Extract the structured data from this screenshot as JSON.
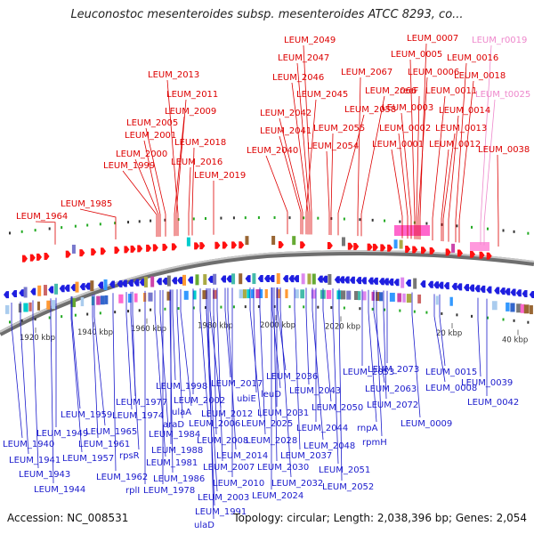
{
  "title": "Leuconostoc mesenteroides subsp. mesenteroides ATCC 8293, co...",
  "footer": {
    "accession": "Accession: NC_008531",
    "topology": "Topology: circular; Length: 2,038,396 bp; Genes: 2,054"
  },
  "scale_ticks": [
    "1920 kbp",
    "1940 kbp",
    "1960 kbp",
    "1980 kbp",
    "2000 kbp",
    "2020 kbp",
    "20 kbp",
    "40 kbp"
  ],
  "colors": {
    "forward_label": "#dd0000",
    "reverse_label": "#1a1acc",
    "rna_label": "#ee88cc",
    "backbone": "#8a8a8a",
    "dot_green": "#22aa22"
  },
  "forward_labels": [
    "LEUM_1964",
    "LEUM_1985",
    "LEUM_1999",
    "LEUM_2000",
    "LEUM_2001",
    "LEUM_2005",
    "LEUM_2009",
    "LEUM_2011",
    "LEUM_2013",
    "LEUM_2016",
    "LEUM_2018",
    "LEUM_2019",
    "LEUM_2040",
    "LEUM_2041",
    "LEUM_2042",
    "LEUM_2045",
    "LEUM_2046",
    "LEUM_2047",
    "LEUM_2049",
    "LEUM_2054",
    "LEUM_2055",
    "LEUM_2058",
    "LEUM_2066",
    "LEUM_2067",
    "LEUM_0001",
    "LEUM_0002",
    "LEUM_0003",
    "recF",
    "LEUM_0005",
    "LEUM_0006",
    "LEUM_0007",
    "LEUM_0011",
    "LEUM_0012",
    "LEUM_0013",
    "LEUM_0014",
    "LEUM_0016",
    "LEUM_0018",
    "LEUM_0038"
  ],
  "rna_labels": [
    "LEUM_r0019",
    "LEUM_t0025"
  ],
  "reverse_labels": [
    "LEUM_1940",
    "LEUM_1941",
    "LEUM_1943",
    "LEUM_1944",
    "LEUM_1949",
    "LEUM_1957",
    "LEUM_1959",
    "LEUM_1961",
    "LEUM_1962",
    "rplI",
    "LEUM_1965",
    "rpsR",
    "LEUM_1974",
    "LEUM_1977",
    "LEUM_1978",
    "LEUM_1981",
    "LEUM_1984",
    "araD",
    "LEUM_1986",
    "LEUM_1988",
    "ulaA",
    "LEUM_1991",
    "ulaD",
    "LEUM_1998",
    "LEUM_2002",
    "LEUM_2003",
    "LEUM_2006",
    "LEUM_2007",
    "LEUM_2008",
    "LEUM_2010",
    "LEUM_2012",
    "LEUM_2014",
    "LEUM_2017",
    "ubiE",
    "LEUM_2024",
    "LEUM_2025",
    "leuD",
    "LEUM_2028",
    "LEUM_2030",
    "LEUM_2031",
    "LEUM_2032",
    "LEUM_2036",
    "LEUM_2037",
    "LEUM_2043",
    "LEUM_2044",
    "LEUM_2048",
    "LEUM_2050",
    "LEUM_2051",
    "LEUM_2052",
    "LEUM_2053",
    "LEUM_2063",
    "rnpA",
    "rpmH",
    "LEUM_2072",
    "LEUM_2073",
    "LEUM_0008",
    "LEUM_0009",
    "LEUM_0015",
    "LEUM_0039",
    "LEUM_0042"
  ]
}
